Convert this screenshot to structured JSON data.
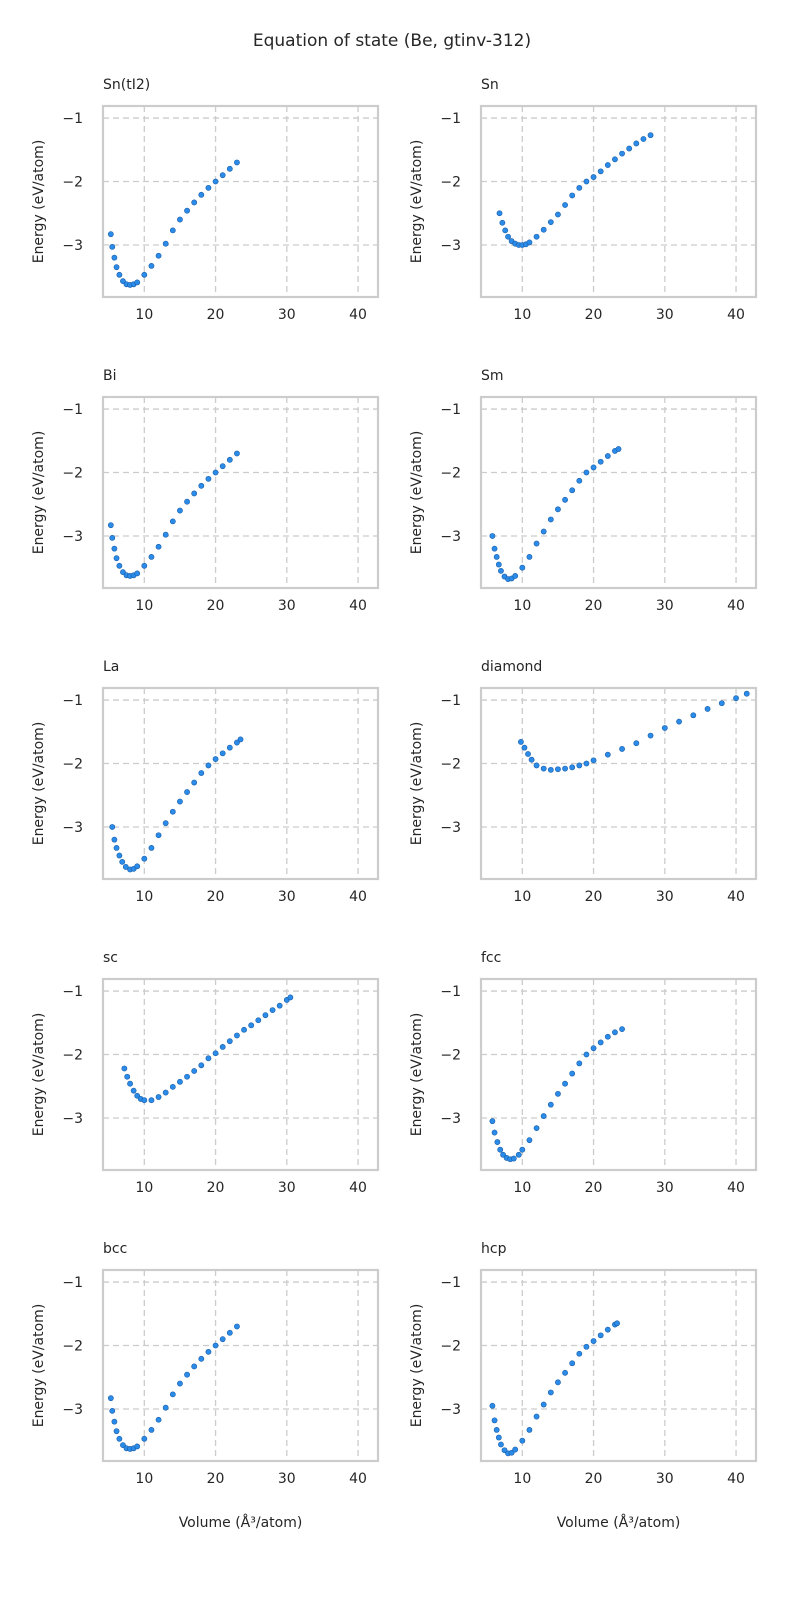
{
  "chart_data": {
    "type": "scatter",
    "title": "Equation of state (Be, gtinv-312)",
    "xlabel": "Volume (Å³/atom)",
    "ylabel": "Energy (eV/atom)",
    "xlim": [
      4.2,
      42.8
    ],
    "ylim": [
      -3.82,
      -0.81
    ],
    "xticks": [
      10,
      20,
      30,
      40
    ],
    "yticks": [
      -1,
      -2,
      -3
    ],
    "xtick_labels": [
      "10",
      "20",
      "30",
      "40"
    ],
    "ytick_labels": [
      "−1",
      "−2",
      "−3"
    ],
    "grid": true,
    "colors": {
      "marker_fill": "#2b8be8",
      "marker_edge": "#1a5ea8",
      "grid": "#cccccc",
      "spine": "#cccccc"
    },
    "panels": [
      {
        "title": "Sn(tI2)",
        "points": [
          [
            5.3,
            -2.83
          ],
          [
            5.5,
            -3.03
          ],
          [
            5.8,
            -3.2
          ],
          [
            6.1,
            -3.35
          ],
          [
            6.5,
            -3.47
          ],
          [
            7,
            -3.57
          ],
          [
            7.5,
            -3.62
          ],
          [
            8,
            -3.63
          ],
          [
            8.5,
            -3.62
          ],
          [
            9,
            -3.59
          ],
          [
            10,
            -3.47
          ],
          [
            11,
            -3.33
          ],
          [
            12,
            -3.17
          ],
          [
            13,
            -2.98
          ],
          [
            14,
            -2.77
          ],
          [
            15,
            -2.6
          ],
          [
            16,
            -2.46
          ],
          [
            17,
            -2.33
          ],
          [
            18,
            -2.21
          ],
          [
            19,
            -2.1
          ],
          [
            20,
            -2.0
          ],
          [
            21,
            -1.9
          ],
          [
            22,
            -1.8
          ],
          [
            23,
            -1.7
          ]
        ]
      },
      {
        "title": "Sn",
        "points": [
          [
            6.8,
            -2.5
          ],
          [
            7.2,
            -2.65
          ],
          [
            7.6,
            -2.77
          ],
          [
            8,
            -2.87
          ],
          [
            8.5,
            -2.94
          ],
          [
            9,
            -2.98
          ],
          [
            9.5,
            -3.0
          ],
          [
            10,
            -3.0
          ],
          [
            10.5,
            -2.99
          ],
          [
            11,
            -2.96
          ],
          [
            12,
            -2.87
          ],
          [
            13,
            -2.76
          ],
          [
            14,
            -2.64
          ],
          [
            15,
            -2.52
          ],
          [
            16,
            -2.37
          ],
          [
            17,
            -2.22
          ],
          [
            18,
            -2.1
          ],
          [
            19,
            -2.0
          ],
          [
            20,
            -1.93
          ],
          [
            21,
            -1.84
          ],
          [
            22,
            -1.74
          ],
          [
            23,
            -1.65
          ],
          [
            24,
            -1.56
          ],
          [
            25,
            -1.48
          ],
          [
            26,
            -1.4
          ],
          [
            27,
            -1.33
          ],
          [
            28,
            -1.27
          ]
        ]
      },
      {
        "title": "Bi",
        "points": [
          [
            5.3,
            -2.83
          ],
          [
            5.5,
            -3.03
          ],
          [
            5.8,
            -3.2
          ],
          [
            6.1,
            -3.35
          ],
          [
            6.5,
            -3.47
          ],
          [
            7,
            -3.57
          ],
          [
            7.5,
            -3.62
          ],
          [
            8,
            -3.63
          ],
          [
            8.5,
            -3.62
          ],
          [
            9,
            -3.59
          ],
          [
            10,
            -3.47
          ],
          [
            11,
            -3.33
          ],
          [
            12,
            -3.17
          ],
          [
            13,
            -2.98
          ],
          [
            14,
            -2.77
          ],
          [
            15,
            -2.6
          ],
          [
            16,
            -2.46
          ],
          [
            17,
            -2.33
          ],
          [
            18,
            -2.21
          ],
          [
            19,
            -2.1
          ],
          [
            20,
            -2.0
          ],
          [
            21,
            -1.9
          ],
          [
            22,
            -1.8
          ],
          [
            23,
            -1.7
          ]
        ]
      },
      {
        "title": "Sm",
        "points": [
          [
            5.8,
            -3.0
          ],
          [
            6.1,
            -3.2
          ],
          [
            6.4,
            -3.33
          ],
          [
            6.7,
            -3.45
          ],
          [
            7,
            -3.55
          ],
          [
            7.5,
            -3.64
          ],
          [
            8,
            -3.68
          ],
          [
            8.5,
            -3.67
          ],
          [
            9,
            -3.63
          ],
          [
            10,
            -3.5
          ],
          [
            11,
            -3.33
          ],
          [
            12,
            -3.12
          ],
          [
            13,
            -2.93
          ],
          [
            14,
            -2.74
          ],
          [
            15,
            -2.58
          ],
          [
            16,
            -2.43
          ],
          [
            17,
            -2.28
          ],
          [
            18,
            -2.13
          ],
          [
            19,
            -2.0
          ],
          [
            20,
            -1.92
          ],
          [
            21,
            -1.83
          ],
          [
            22,
            -1.74
          ],
          [
            23,
            -1.66
          ],
          [
            23.5,
            -1.63
          ]
        ]
      },
      {
        "title": "La",
        "points": [
          [
            5.5,
            -3.0
          ],
          [
            5.8,
            -3.2
          ],
          [
            6.1,
            -3.33
          ],
          [
            6.5,
            -3.45
          ],
          [
            6.9,
            -3.55
          ],
          [
            7.4,
            -3.63
          ],
          [
            8,
            -3.67
          ],
          [
            8.5,
            -3.66
          ],
          [
            9,
            -3.62
          ],
          [
            10,
            -3.5
          ],
          [
            11,
            -3.33
          ],
          [
            12,
            -3.13
          ],
          [
            13,
            -2.94
          ],
          [
            14,
            -2.76
          ],
          [
            15,
            -2.6
          ],
          [
            16,
            -2.45
          ],
          [
            17,
            -2.3
          ],
          [
            18,
            -2.15
          ],
          [
            19,
            -2.03
          ],
          [
            20,
            -1.93
          ],
          [
            21,
            -1.84
          ],
          [
            22,
            -1.75
          ],
          [
            23,
            -1.67
          ],
          [
            23.5,
            -1.62
          ]
        ]
      },
      {
        "title": "diamond",
        "points": [
          [
            9.8,
            -1.66
          ],
          [
            10.3,
            -1.75
          ],
          [
            10.8,
            -1.85
          ],
          [
            11.3,
            -1.94
          ],
          [
            12,
            -2.03
          ],
          [
            13,
            -2.08
          ],
          [
            14,
            -2.1
          ],
          [
            15,
            -2.09
          ],
          [
            16,
            -2.08
          ],
          [
            17,
            -2.06
          ],
          [
            18,
            -2.03
          ],
          [
            19,
            -2.0
          ],
          [
            20,
            -1.95
          ],
          [
            22,
            -1.86
          ],
          [
            24,
            -1.77
          ],
          [
            26,
            -1.68
          ],
          [
            28,
            -1.56
          ],
          [
            30,
            -1.44
          ],
          [
            32,
            -1.34
          ],
          [
            34,
            -1.24
          ],
          [
            36,
            -1.14
          ],
          [
            38,
            -1.05
          ],
          [
            40,
            -0.97
          ],
          [
            41.5,
            -0.9
          ]
        ]
      },
      {
        "title": "sc",
        "points": [
          [
            7.2,
            -2.22
          ],
          [
            7.6,
            -2.35
          ],
          [
            8,
            -2.46
          ],
          [
            8.5,
            -2.57
          ],
          [
            9,
            -2.65
          ],
          [
            9.5,
            -2.7
          ],
          [
            10,
            -2.72
          ],
          [
            11,
            -2.72
          ],
          [
            12,
            -2.67
          ],
          [
            13,
            -2.6
          ],
          [
            14,
            -2.51
          ],
          [
            15,
            -2.43
          ],
          [
            16,
            -2.35
          ],
          [
            17,
            -2.26
          ],
          [
            18,
            -2.17
          ],
          [
            19,
            -2.06
          ],
          [
            20,
            -1.98
          ],
          [
            21,
            -1.88
          ],
          [
            22,
            -1.79
          ],
          [
            23,
            -1.7
          ],
          [
            24,
            -1.61
          ],
          [
            25,
            -1.54
          ],
          [
            26,
            -1.46
          ],
          [
            27,
            -1.38
          ],
          [
            28,
            -1.3
          ],
          [
            29,
            -1.23
          ],
          [
            30,
            -1.14
          ],
          [
            30.5,
            -1.1
          ]
        ]
      },
      {
        "title": "fcc",
        "points": [
          [
            5.8,
            -3.05
          ],
          [
            6.1,
            -3.23
          ],
          [
            6.5,
            -3.38
          ],
          [
            6.9,
            -3.5
          ],
          [
            7.3,
            -3.58
          ],
          [
            7.8,
            -3.63
          ],
          [
            8.3,
            -3.65
          ],
          [
            8.8,
            -3.64
          ],
          [
            9.5,
            -3.58
          ],
          [
            10,
            -3.5
          ],
          [
            11,
            -3.35
          ],
          [
            12,
            -3.16
          ],
          [
            13,
            -2.97
          ],
          [
            14,
            -2.79
          ],
          [
            15,
            -2.62
          ],
          [
            16,
            -2.46
          ],
          [
            17,
            -2.3
          ],
          [
            18,
            -2.14
          ],
          [
            19,
            -2.0
          ],
          [
            20,
            -1.9
          ],
          [
            21,
            -1.81
          ],
          [
            22,
            -1.72
          ],
          [
            23,
            -1.65
          ],
          [
            24,
            -1.6
          ]
        ]
      },
      {
        "title": "bcc",
        "points": [
          [
            5.3,
            -2.83
          ],
          [
            5.5,
            -3.03
          ],
          [
            5.8,
            -3.2
          ],
          [
            6.1,
            -3.35
          ],
          [
            6.5,
            -3.47
          ],
          [
            7,
            -3.57
          ],
          [
            7.5,
            -3.62
          ],
          [
            8,
            -3.63
          ],
          [
            8.5,
            -3.62
          ],
          [
            9,
            -3.59
          ],
          [
            10,
            -3.47
          ],
          [
            11,
            -3.33
          ],
          [
            12,
            -3.17
          ],
          [
            13,
            -2.98
          ],
          [
            14,
            -2.77
          ],
          [
            15,
            -2.6
          ],
          [
            16,
            -2.46
          ],
          [
            17,
            -2.33
          ],
          [
            18,
            -2.21
          ],
          [
            19,
            -2.1
          ],
          [
            20,
            -2.0
          ],
          [
            21,
            -1.9
          ],
          [
            22,
            -1.8
          ],
          [
            23,
            -1.7
          ]
        ]
      },
      {
        "title": "hcp",
        "points": [
          [
            5.8,
            -2.95
          ],
          [
            6.1,
            -3.18
          ],
          [
            6.4,
            -3.33
          ],
          [
            6.7,
            -3.45
          ],
          [
            7,
            -3.56
          ],
          [
            7.5,
            -3.65
          ],
          [
            8,
            -3.7
          ],
          [
            8.5,
            -3.69
          ],
          [
            9,
            -3.64
          ],
          [
            10,
            -3.5
          ],
          [
            11,
            -3.33
          ],
          [
            12,
            -3.12
          ],
          [
            13,
            -2.93
          ],
          [
            14,
            -2.74
          ],
          [
            15,
            -2.58
          ],
          [
            16,
            -2.43
          ],
          [
            17,
            -2.28
          ],
          [
            18,
            -2.13
          ],
          [
            19,
            -2.02
          ],
          [
            20,
            -1.93
          ],
          [
            21,
            -1.84
          ],
          [
            22,
            -1.75
          ],
          [
            23,
            -1.67
          ],
          [
            23.3,
            -1.65
          ]
        ]
      }
    ]
  }
}
